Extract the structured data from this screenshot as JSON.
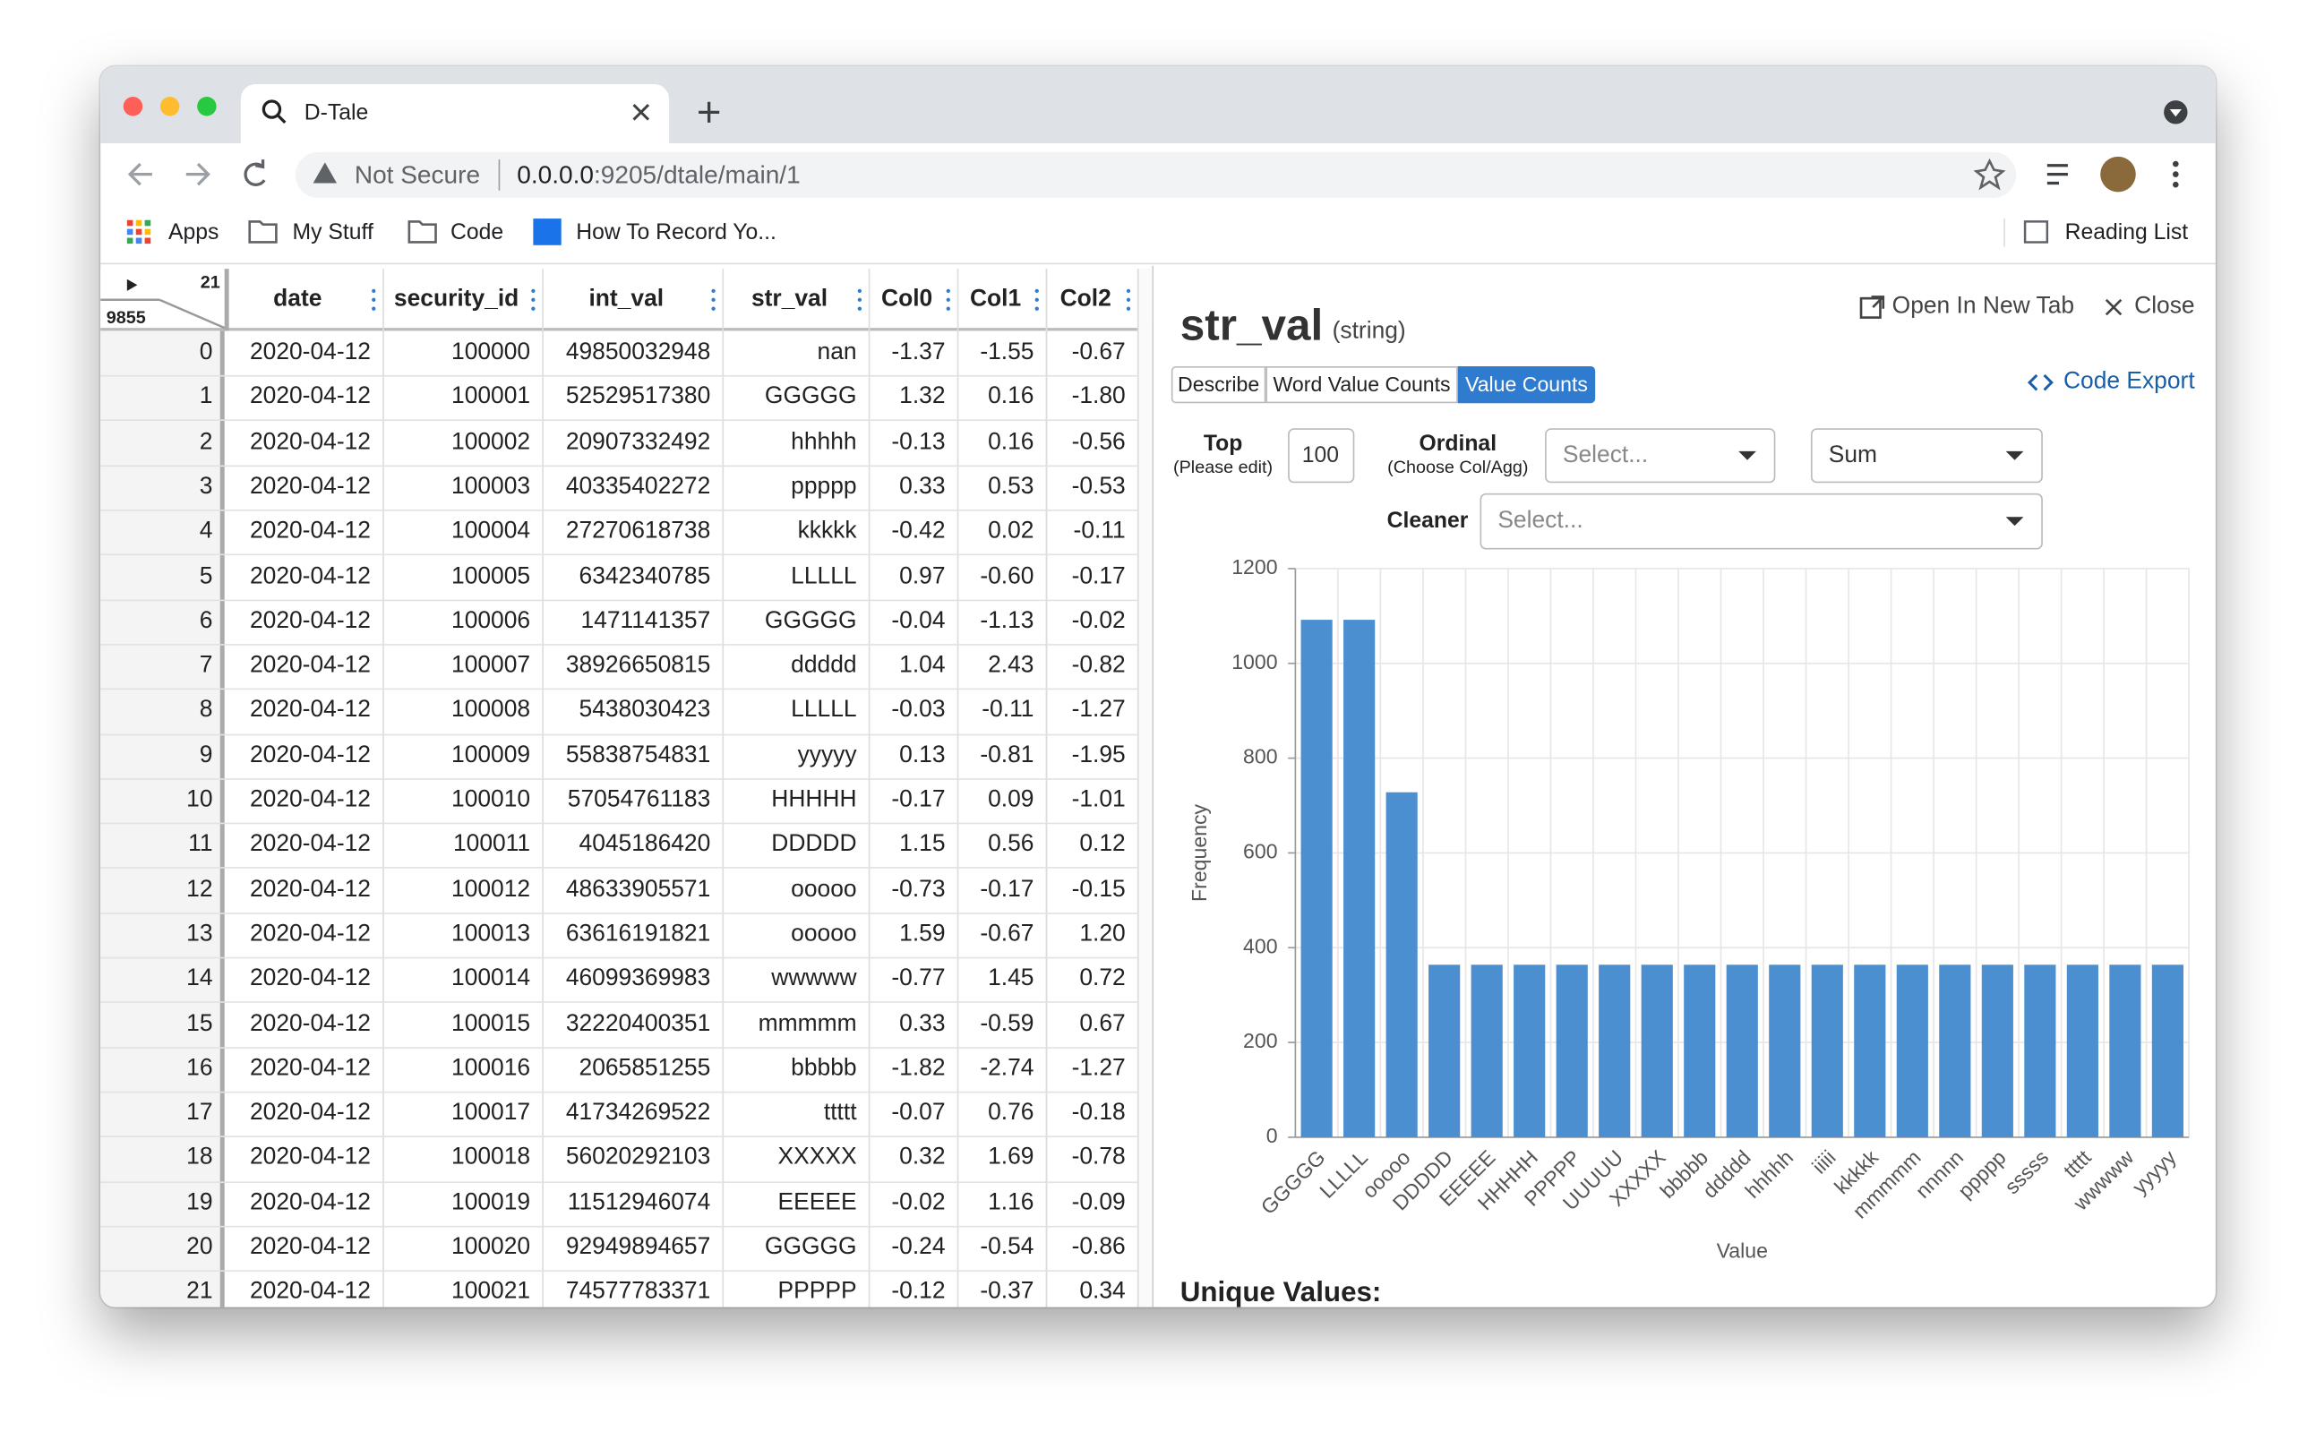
{
  "browser": {
    "tab_title": "D-Tale",
    "security": "Not Secure",
    "url_host": "0.0.0.0",
    "url_path": ":9205/dtale/main/1",
    "bookmarks": [
      "Apps",
      "My Stuff",
      "Code",
      "How To Record Yo..."
    ],
    "bookmark_icon": "mR",
    "reading_list": "Reading List"
  },
  "grid": {
    "column_count": "21",
    "row_count": "9855",
    "columns": [
      "date",
      "security_id",
      "int_val",
      "str_val",
      "Col0",
      "Col1",
      "Col2"
    ],
    "rows": [
      [
        "0",
        "2020-04-12",
        "100000",
        "49850032948",
        "nan",
        "-1.37",
        "-1.55",
        "-0.67"
      ],
      [
        "1",
        "2020-04-12",
        "100001",
        "52529517380",
        "GGGGG",
        "1.32",
        "0.16",
        "-1.80"
      ],
      [
        "2",
        "2020-04-12",
        "100002",
        "20907332492",
        "hhhhh",
        "-0.13",
        "0.16",
        "-0.56"
      ],
      [
        "3",
        "2020-04-12",
        "100003",
        "40335402272",
        "ppppp",
        "0.33",
        "0.53",
        "-0.53"
      ],
      [
        "4",
        "2020-04-12",
        "100004",
        "27270618738",
        "kkkkk",
        "-0.42",
        "0.02",
        "-0.11"
      ],
      [
        "5",
        "2020-04-12",
        "100005",
        "6342340785",
        "LLLLL",
        "0.97",
        "-0.60",
        "-0.17"
      ],
      [
        "6",
        "2020-04-12",
        "100006",
        "1471141357",
        "GGGGG",
        "-0.04",
        "-1.13",
        "-0.02"
      ],
      [
        "7",
        "2020-04-12",
        "100007",
        "38926650815",
        "ddddd",
        "1.04",
        "2.43",
        "-0.82"
      ],
      [
        "8",
        "2020-04-12",
        "100008",
        "5438030423",
        "LLLLL",
        "-0.03",
        "-0.11",
        "-1.27"
      ],
      [
        "9",
        "2020-04-12",
        "100009",
        "55838754831",
        "yyyyy",
        "0.13",
        "-0.81",
        "-1.95"
      ],
      [
        "10",
        "2020-04-12",
        "100010",
        "57054761183",
        "HHHHH",
        "-0.17",
        "0.09",
        "-1.01"
      ],
      [
        "11",
        "2020-04-12",
        "100011",
        "4045186420",
        "DDDDD",
        "1.15",
        "0.56",
        "0.12"
      ],
      [
        "12",
        "2020-04-12",
        "100012",
        "48633905571",
        "ooooo",
        "-0.73",
        "-0.17",
        "-0.15"
      ],
      [
        "13",
        "2020-04-12",
        "100013",
        "63616191821",
        "ooooo",
        "1.59",
        "-0.67",
        "1.20"
      ],
      [
        "14",
        "2020-04-12",
        "100014",
        "46099369983",
        "wwwww",
        "-0.77",
        "1.45",
        "0.72"
      ],
      [
        "15",
        "2020-04-12",
        "100015",
        "32220400351",
        "mmmmm",
        "0.33",
        "-0.59",
        "0.67"
      ],
      [
        "16",
        "2020-04-12",
        "100016",
        "2065851255",
        "bbbbb",
        "-1.82",
        "-2.74",
        "-1.27"
      ],
      [
        "17",
        "2020-04-12",
        "100017",
        "41734269522",
        "ttttt",
        "-0.07",
        "0.76",
        "-0.18"
      ],
      [
        "18",
        "2020-04-12",
        "100018",
        "56020292103",
        "XXXXX",
        "0.32",
        "1.69",
        "-0.78"
      ],
      [
        "19",
        "2020-04-12",
        "100019",
        "11512946074",
        "EEEEE",
        "-0.02",
        "1.16",
        "-0.09"
      ],
      [
        "20",
        "2020-04-12",
        "100020",
        "92949894657",
        "GGGGG",
        "-0.24",
        "-0.54",
        "-0.86"
      ],
      [
        "21",
        "2020-04-12",
        "100021",
        "74577783371",
        "PPPPP",
        "-0.12",
        "-0.37",
        "0.34"
      ]
    ]
  },
  "panel": {
    "title": "str_val",
    "dtype": "(string)",
    "open_new_tab": "Open In New Tab",
    "close": "Close",
    "tabs": [
      "Describe",
      "Word Value Counts",
      "Value Counts"
    ],
    "code_export": "Code Export",
    "top_label": "Top",
    "top_hint": "(Please edit)",
    "top_value": "100",
    "ordinal_label": "Ordinal",
    "ordinal_hint": "(Choose Col/Agg)",
    "ordinal_placeholder": "Select...",
    "agg": "Sum",
    "cleaner_label": "Cleaner",
    "cleaner_placeholder": "Select...",
    "unique_values": "Unique Values:"
  },
  "chart_data": {
    "type": "bar",
    "x_label": "Value",
    "y_label": "Frequency",
    "categories": [
      "GGGGG",
      "LLLLL",
      "ooooo",
      "DDDDD",
      "EEEEE",
      "HHHHH",
      "PPPPP",
      "UUUUU",
      "XXXXX",
      "bbbbb",
      "ddddd",
      "hhhhh",
      "iiiii",
      "kkkkk",
      "mmmmm",
      "nnnnn",
      "ppppp",
      "sssss",
      "ttttt",
      "wwwww",
      "yyyyy"
    ],
    "values": [
      1092,
      1092,
      728,
      364,
      364,
      364,
      364,
      364,
      364,
      364,
      364,
      364,
      364,
      364,
      364,
      364,
      364,
      364,
      364,
      364,
      364
    ],
    "color": "#4b8fd1",
    "ylim": [
      0,
      1200
    ],
    "yticks": [
      0,
      200,
      400,
      600,
      800,
      1000,
      1200
    ],
    "grid": true
  }
}
